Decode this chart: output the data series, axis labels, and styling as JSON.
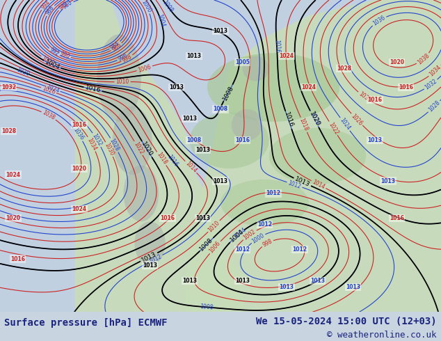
{
  "title_left": "Surface pressure [hPa] ECMWF",
  "title_right": "We 15-05-2024 15:00 UTC (12+03)",
  "copyright": "© weatheronline.co.uk",
  "bg_color": "#c8d4e0",
  "map_bg": "#d8e4ee",
  "bottom_bar_color": "#d0dce8",
  "text_color": "#1a237e",
  "title_fontsize": 10,
  "copy_fontsize": 9,
  "figsize": [
    6.34,
    4.9
  ],
  "dpi": 100,
  "ocean_color": "#c0d0e0",
  "land_color": "#c8ddb8",
  "land_color2": "#a8c898",
  "terrain_color": "#aab0aa",
  "blue_iso_color": "#2244cc",
  "red_iso_color": "#cc2222",
  "black_iso_color": "#000000"
}
